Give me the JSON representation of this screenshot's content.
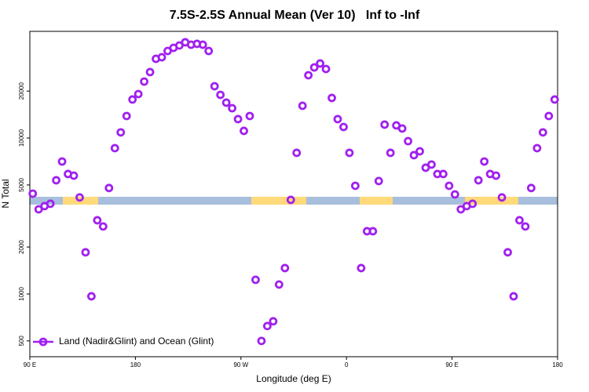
{
  "chart_data": {
    "type": "scatter",
    "title": "7.5S-2.5S Annual Mean (Ver 10)   Inf to -Inf",
    "xlabel": "Longitude (deg E)",
    "ylabel": "N Total",
    "x": [
      92.5,
      97.5,
      102.5,
      107.5,
      112.5,
      117.5,
      122.5,
      127.5,
      132.5,
      137.5,
      142.5,
      147.5,
      152.5,
      157.5,
      162.5,
      167.5,
      172.5,
      177.5,
      182.5,
      187.5,
      192.5,
      197.5,
      202.5,
      207.5,
      212.5,
      217.5,
      222.5,
      227.5,
      232.5,
      237.5,
      242.5,
      247.5,
      252.5,
      257.5,
      262.5,
      267.5,
      272.5,
      277.5,
      282.5,
      287.5,
      292.5,
      297.5,
      302.5,
      307.5,
      312.5,
      317.5,
      322.5,
      327.5,
      332.5,
      337.5,
      342.5,
      347.5,
      352.5,
      357.5,
      362.5,
      367.5,
      372.5,
      377.5,
      382.5,
      387.5,
      392.5,
      397.5,
      402.5,
      407.5,
      412.5,
      417.5,
      422.5,
      427.5,
      432.5,
      437.5,
      442.5,
      447.5,
      452.5,
      457.5,
      462.5,
      467.5,
      472.5,
      477.5,
      482.5,
      487.5,
      492.5,
      497.5,
      502.5,
      507.5,
      512.5,
      517.5,
      522.5,
      527.5,
      532.5,
      537.5
    ],
    "series": [
      {
        "name": "Land (Nadir&Glint) and Ocean (Glint)",
        "color": "#a020f0",
        "values": [
          4400,
          3490,
          3660,
          3790,
          5360,
          7070,
          5880,
          5740,
          4160,
          1850,
          966,
          2970,
          2710,
          4780,
          8610,
          10870,
          13840,
          17660,
          19140,
          23020,
          26480,
          32200,
          32960,
          36160,
          37870,
          39220,
          41100,
          39660,
          40170,
          39660,
          36160,
          21490,
          18920,
          16860,
          15530,
          13220,
          11110,
          13840,
          1233,
          500,
          623,
          668,
          1150,
          1466,
          4013,
          8035,
          16100,
          25270,
          28360,
          30070,
          27720,
          18070,
          13220,
          11770,
          8035,
          4940,
          1466,
          2525,
          2525,
          5300,
          12190,
          8035,
          12050,
          11510,
          9550,
          7760,
          8220,
          6450,
          6760,
          5880,
          5880,
          4940,
          4350,
          3490,
          3660,
          3790,
          5360,
          7070,
          5880,
          5740,
          4160,
          1850,
          966,
          2970,
          2710,
          4780,
          8610,
          10870,
          13840,
          17660
        ]
      }
    ],
    "xlim": [
      90,
      540
    ],
    "xticks": [
      {
        "value": 90,
        "label": "90 E"
      },
      180,
      {
        "value": 270,
        "label": "90 W"
      },
      {
        "value": 360,
        "label": "0"
      },
      {
        "value": 450,
        "label": "90 E"
      },
      {
        "value": 540,
        "label": "180"
      }
    ],
    "ylim": [
      396,
      48300
    ],
    "log_y": true,
    "yticks": [
      500,
      1000,
      2000,
      5000,
      10000,
      20000
    ],
    "legend": "lower left"
  }
}
